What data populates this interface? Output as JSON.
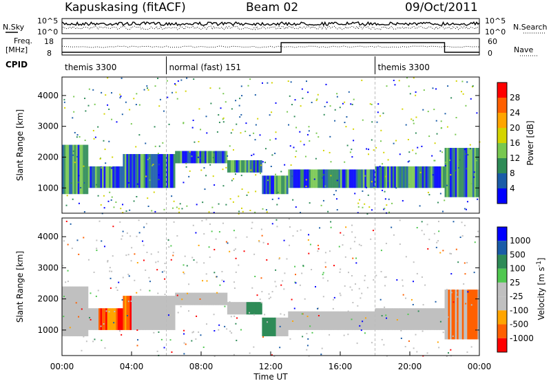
{
  "header": {
    "station": "Kapuskasing (fitACF)",
    "beam": "Beam 02",
    "date": "09/Oct/2011"
  },
  "top_panels": {
    "nsky_label": "N.Sky",
    "nsearch_label": "N.Search",
    "noise_ticks": [
      "10^5",
      "10^0"
    ],
    "freq_label_1": "Freq.",
    "freq_label_2": "[MHz]",
    "nave_label": "Nave",
    "freq_ticks": [
      "18",
      "8"
    ],
    "nave_ticks": [
      "60",
      "0"
    ],
    "cpid_label": "CPID",
    "cpid_segments": [
      {
        "label": "themis 3300",
        "start_hour": 0,
        "end_hour": 6
      },
      {
        "label": "normal (fast) 151",
        "start_hour": 6,
        "end_hour": 18
      },
      {
        "label": "themis 3300",
        "start_hour": 18,
        "end_hour": 24
      }
    ]
  },
  "colors": {
    "power": [
      "#0000ff",
      "#1a5ca8",
      "#2e8b57",
      "#78c850",
      "#d4d400",
      "#ffa500",
      "#ff6000",
      "#ff0000"
    ],
    "velocity": [
      "#ff0000",
      "#ff6000",
      "#ffa500",
      "#c0c0c0",
      "#c0c0c0",
      "#50c850",
      "#2e8b57",
      "#1a5ca8",
      "#0000ff"
    ],
    "ground_scatter": "#c0c0c0"
  },
  "chart_data": [
    {
      "type": "heatmap",
      "name": "power",
      "ylabel": "Slant Range [km]",
      "yticks": [
        1000,
        2000,
        3000,
        4000
      ],
      "ylim": [
        180,
        4600
      ],
      "xticks": [
        "00:00",
        "04:00",
        "08:00",
        "12:00",
        "16:00",
        "20:00",
        "00:00"
      ],
      "colorbar_label": "Power [dB]",
      "colorbar_ticks": [
        4,
        8,
        12,
        16,
        20,
        24,
        28
      ],
      "scatter_bands": [
        {
          "start_hour": 0.0,
          "end_hour": 1.5,
          "low_km": 800,
          "high_km": 2400
        },
        {
          "start_hour": 1.5,
          "end_hour": 3.5,
          "low_km": 1000,
          "high_km": 1700
        },
        {
          "start_hour": 3.5,
          "end_hour": 6.5,
          "low_km": 1000,
          "high_km": 2100
        },
        {
          "start_hour": 6.5,
          "end_hour": 9.5,
          "low_km": 1800,
          "high_km": 2200
        },
        {
          "start_hour": 9.5,
          "end_hour": 11.5,
          "low_km": 1500,
          "high_km": 1900
        },
        {
          "start_hour": 11.5,
          "end_hour": 13.0,
          "low_km": 800,
          "high_km": 1400
        },
        {
          "start_hour": 13.0,
          "end_hour": 18.0,
          "low_km": 1000,
          "high_km": 1600
        },
        {
          "start_hour": 18.0,
          "end_hour": 22.0,
          "low_km": 1000,
          "high_km": 1700
        },
        {
          "start_hour": 22.0,
          "end_hour": 24.0,
          "low_km": 700,
          "high_km": 2300
        }
      ]
    },
    {
      "type": "heatmap",
      "name": "velocity",
      "ylabel": "Slant Range [km]",
      "yticks": [
        1000,
        2000,
        3000,
        4000
      ],
      "ylim": [
        180,
        4600
      ],
      "xticks": [
        "00:00",
        "04:00",
        "08:00",
        "12:00",
        "16:00",
        "20:00",
        "00:00"
      ],
      "xlabel": "Time UT",
      "colorbar_label": "Velocity [m s^-1]",
      "colorbar_ticks": [
        1000,
        500,
        100,
        25,
        -25,
        -100,
        -500,
        -1000
      ]
    }
  ]
}
